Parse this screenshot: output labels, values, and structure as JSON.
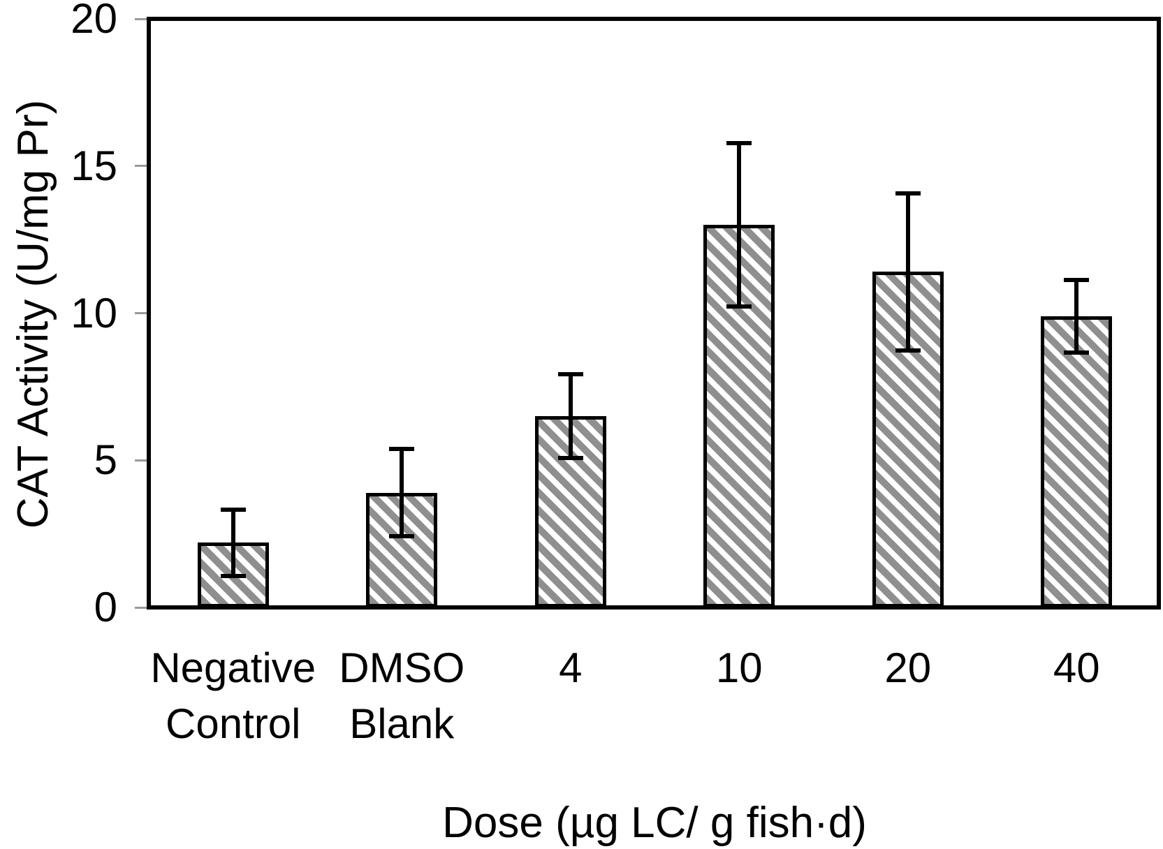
{
  "chart_data": {
    "type": "bar",
    "title": "",
    "categories": [
      "Negative Control",
      "DMSO Blank",
      "4",
      "10",
      "20",
      "40"
    ],
    "category_labels": [
      "Negative\nControl",
      "DMSO\nBlank",
      "4",
      "10",
      "20",
      "40"
    ],
    "values": [
      2.2,
      3.9,
      6.5,
      13.0,
      11.4,
      9.9
    ],
    "errors": [
      1.2,
      1.55,
      1.5,
      2.85,
      2.75,
      1.3
    ],
    "xlabel": "Dose (µg LC/ g fish·d)",
    "ylabel": "CAT Activity (U/mg Pr)",
    "ylim": [
      0,
      20
    ],
    "yticks": [
      0,
      5,
      10,
      15,
      20
    ],
    "grid": false,
    "legend_position": "none",
    "bar_style": {
      "fill_color": "#ffffff",
      "hatch": "diagonal-down",
      "hatch_color": "#8f8f8f",
      "border_color": "#000000",
      "error_bar_color": "#000000"
    }
  }
}
